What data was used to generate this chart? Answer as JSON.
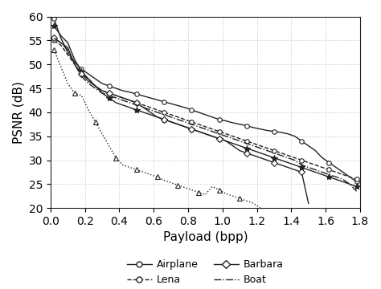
{
  "title": "",
  "xlabel": "Payload (bpp)",
  "ylabel": "PSNR (dB)",
  "xlim": [
    0,
    1.8
  ],
  "ylim": [
    20,
    60
  ],
  "xticks": [
    0,
    0.2,
    0.4,
    0.6,
    0.8,
    1.0,
    1.2,
    1.4,
    1.6,
    1.8
  ],
  "yticks": [
    20,
    25,
    30,
    35,
    40,
    45,
    50,
    55,
    60
  ],
  "series": {
    "Airplane": {
      "x": [
        0.02,
        0.06,
        0.1,
        0.14,
        0.18,
        0.22,
        0.26,
        0.3,
        0.34,
        0.38,
        0.42,
        0.46,
        0.5,
        0.54,
        0.58,
        0.62,
        0.66,
        0.7,
        0.74,
        0.78,
        0.82,
        0.86,
        0.9,
        0.94,
        0.98,
        1.02,
        1.06,
        1.1,
        1.14,
        1.18,
        1.22,
        1.26,
        1.3,
        1.34,
        1.38,
        1.42,
        1.46,
        1.5,
        1.54,
        1.58,
        1.62,
        1.66,
        1.7,
        1.74,
        1.78
      ],
      "y": [
        59.5,
        55.5,
        52.5,
        50.5,
        49.0,
        48.0,
        47.0,
        46.0,
        45.5,
        45.0,
        44.5,
        44.2,
        43.8,
        43.4,
        43.0,
        42.6,
        42.2,
        41.8,
        41.4,
        41.0,
        40.5,
        40.0,
        39.5,
        39.0,
        38.5,
        38.2,
        37.8,
        37.5,
        37.2,
        36.8,
        36.5,
        36.2,
        36.0,
        35.8,
        35.5,
        35.0,
        34.0,
        33.0,
        32.0,
        30.5,
        29.5,
        28.5,
        27.5,
        26.5,
        25.5
      ],
      "linestyle": "-",
      "marker": "o",
      "color": "#222222",
      "markersize": 4,
      "markerfacecolor": "white",
      "markevery": 4
    },
    "Lena": {
      "x": [
        0.02,
        0.06,
        0.1,
        0.14,
        0.18,
        0.22,
        0.26,
        0.3,
        0.34,
        0.38,
        0.42,
        0.46,
        0.5,
        0.54,
        0.58,
        0.62,
        0.66,
        0.7,
        0.74,
        0.78,
        0.82,
        0.86,
        0.9,
        0.94,
        0.98,
        1.02,
        1.06,
        1.1,
        1.14,
        1.18,
        1.22,
        1.26,
        1.3,
        1.34,
        1.38,
        1.42,
        1.46,
        1.5,
        1.54,
        1.58,
        1.62,
        1.66,
        1.7,
        1.74,
        1.78
      ],
      "y": [
        55.0,
        54.0,
        52.0,
        50.0,
        48.0,
        47.0,
        45.5,
        44.5,
        44.0,
        43.5,
        43.0,
        42.5,
        42.0,
        41.5,
        41.0,
        40.5,
        40.0,
        39.5,
        39.0,
        38.5,
        38.0,
        37.5,
        37.0,
        36.5,
        36.0,
        35.5,
        35.0,
        34.5,
        34.0,
        33.5,
        33.0,
        32.5,
        32.0,
        31.5,
        31.0,
        30.5,
        30.0,
        29.5,
        29.0,
        28.5,
        28.0,
        27.5,
        27.0,
        26.5,
        26.0
      ],
      "linestyle": "--",
      "marker": "o",
      "color": "#222222",
      "markersize": 4,
      "markerfacecolor": "white",
      "markevery": 4
    },
    "Peppers": {
      "x": [
        0.02,
        0.06,
        0.1,
        0.14,
        0.18,
        0.22,
        0.26,
        0.3,
        0.34,
        0.38,
        0.42,
        0.46,
        0.5,
        0.54,
        0.58,
        0.62,
        0.66,
        0.7,
        0.74,
        0.78,
        0.82,
        0.86,
        0.9,
        0.94,
        0.98,
        1.02,
        1.06,
        1.1,
        1.14,
        1.18,
        1.22,
        1.26,
        1.3,
        1.34,
        1.38,
        1.42,
        1.46,
        1.5,
        1.54,
        1.58,
        1.62,
        1.66,
        1.7,
        1.74,
        1.78
      ],
      "y": [
        58.0,
        56.0,
        54.5,
        51.0,
        48.5,
        47.0,
        45.5,
        44.0,
        43.0,
        42.0,
        41.5,
        41.0,
        40.5,
        40.0,
        39.5,
        39.0,
        38.5,
        38.0,
        37.5,
        37.0,
        36.5,
        36.0,
        35.5,
        35.0,
        34.5,
        34.0,
        33.5,
        33.0,
        32.5,
        32.0,
        31.5,
        31.0,
        30.5,
        30.0,
        29.5,
        29.0,
        28.5,
        28.0,
        27.5,
        27.0,
        26.5,
        26.0,
        25.5,
        25.0,
        24.5
      ],
      "linestyle": "-",
      "marker": "*",
      "color": "#222222",
      "markersize": 6,
      "markerfacecolor": "#222222",
      "markevery": 4
    },
    "Barbara": {
      "x": [
        0.02,
        0.06,
        0.1,
        0.14,
        0.18,
        0.22,
        0.26,
        0.3,
        0.34,
        0.38,
        0.42,
        0.46,
        0.5,
        0.54,
        0.58,
        0.62,
        0.66,
        0.7,
        0.74,
        0.78,
        0.82,
        0.86,
        0.9,
        0.94,
        0.98,
        1.02,
        1.06,
        1.1,
        1.14,
        1.18,
        1.22,
        1.26,
        1.3,
        1.34,
        1.38,
        1.42,
        1.46,
        1.5
      ],
      "y": [
        55.5,
        54.5,
        53.5,
        50.0,
        48.0,
        46.5,
        45.5,
        44.5,
        44.0,
        43.5,
        43.0,
        42.5,
        42.0,
        41.0,
        40.0,
        39.0,
        38.5,
        38.0,
        37.5,
        37.0,
        36.5,
        36.0,
        35.5,
        35.0,
        34.5,
        34.0,
        33.0,
        32.0,
        31.5,
        31.0,
        30.5,
        30.0,
        29.5,
        29.0,
        28.5,
        28.0,
        27.5,
        21.0
      ],
      "linestyle": "-",
      "marker": "D",
      "color": "#222222",
      "markersize": 4,
      "markerfacecolor": "white",
      "markevery": 4
    },
    "Boat": {
      "x": [
        0.02,
        0.06,
        0.1,
        0.14,
        0.18,
        0.22,
        0.26,
        0.3,
        0.34,
        0.38,
        0.42,
        0.46,
        0.5,
        0.54,
        0.58,
        0.62,
        0.66,
        0.7,
        0.74,
        0.78,
        0.82,
        0.86,
        0.9,
        0.94,
        0.98,
        1.02,
        1.06,
        1.1,
        1.14,
        1.18,
        1.22,
        1.26,
        1.3,
        1.34,
        1.38,
        1.42,
        1.46,
        1.5,
        1.54,
        1.58,
        1.62,
        1.66,
        1.7,
        1.74,
        1.78
      ],
      "y": [
        55.5,
        54.5,
        53.0,
        50.0,
        47.5,
        46.0,
        45.0,
        44.0,
        43.5,
        43.0,
        42.5,
        42.0,
        41.5,
        41.0,
        40.5,
        40.0,
        39.5,
        39.0,
        38.5,
        38.0,
        37.5,
        37.0,
        36.5,
        36.0,
        35.5,
        35.0,
        34.5,
        34.0,
        33.5,
        33.0,
        32.5,
        32.0,
        31.5,
        31.0,
        30.5,
        30.0,
        29.0,
        28.5,
        28.0,
        27.5,
        27.0,
        26.5,
        26.0,
        25.0,
        23.5
      ],
      "linestyle": "-.",
      "marker": null,
      "color": "#222222",
      "markersize": 0,
      "markerfacecolor": "white",
      "markevery": 4
    },
    "Mandrill": {
      "x": [
        0.02,
        0.06,
        0.1,
        0.14,
        0.18,
        0.22,
        0.26,
        0.3,
        0.34,
        0.38,
        0.42,
        0.46,
        0.5,
        0.54,
        0.58,
        0.62,
        0.66,
        0.7,
        0.74,
        0.78,
        0.82,
        0.86,
        0.9,
        0.94,
        0.98,
        1.02,
        1.06,
        1.1,
        1.18,
        1.22
      ],
      "y": [
        53.0,
        49.5,
        46.0,
        44.0,
        43.5,
        40.5,
        38.0,
        35.5,
        33.0,
        30.5,
        29.0,
        28.5,
        28.0,
        27.5,
        27.0,
        26.5,
        25.8,
        25.3,
        24.8,
        24.3,
        23.8,
        23.3,
        22.8,
        24.5,
        23.8,
        23.0,
        22.5,
        22.0,
        21.0,
        20.0
      ],
      "linestyle": ":",
      "marker": "^",
      "color": "#222222",
      "markersize": 5,
      "markerfacecolor": "white",
      "markevery": 3
    }
  },
  "background_color": "#ffffff",
  "grid_color": "#bbbbbb",
  "legend_fontsize": 9,
  "axis_fontsize": 11,
  "tick_fontsize": 10
}
